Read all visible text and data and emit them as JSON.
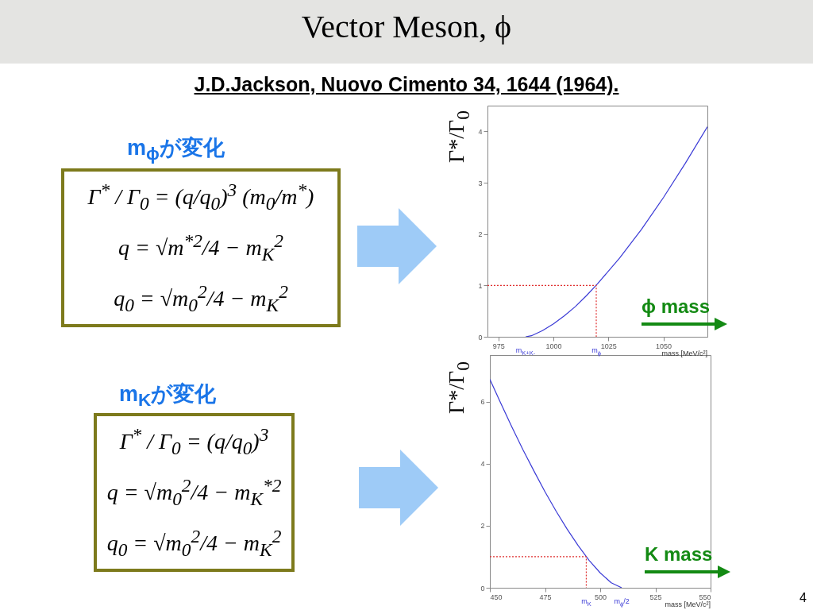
{
  "chart_data": [
    {
      "type": "line",
      "title": "Vector Meson, ϕ",
      "subtitle": "J.D.Jackson, Nuovo Cimento 34, 1644 (1964).",
      "xlabel": "mass [MeV/c²]",
      "ylabel": "Γ*/Γ$_{0}$",
      "xlim": [
        970,
        1070
      ],
      "xticks": [
        975,
        1000,
        1025,
        1050
      ],
      "ylim": [
        0,
        4.5
      ],
      "yticks": [
        0,
        1,
        2,
        3,
        4
      ],
      "series": [
        {
          "color": "#3b3bd6",
          "x": [
            987.35,
            990,
            995,
            1000,
            1005,
            1010,
            1015,
            1020,
            1030,
            1040,
            1050,
            1060,
            1070
          ],
          "values": [
            0,
            0.02,
            0.12,
            0.25,
            0.41,
            0.59,
            0.8,
            1.03,
            1.53,
            2.09,
            2.71,
            3.38,
            4.09
          ]
        },
        {
          "color": "#e03030",
          "line_style": "dotted",
          "x": [
            970,
            1019.46,
            1019.46
          ],
          "values": [
            1,
            1,
            0
          ]
        }
      ],
      "annotations": [
        "m$_{ϕ}$が変化",
        "Γ$^{*}$ / Γ$_{0}$ = (q/q$_{0}$)$^{3}$ (m$_{0}$/m$^{*}$)",
        "q = √m$^{*2}$/4 − m$_{K}$$^{2}$",
        "q$_{0}$ = √m$_{0}$$^{2}$/4 − m$_{K}$$^{2}$",
        "ϕ mass",
        {
          "text": "m$_{K+K-}$",
          "x": 987.35,
          "y": 0
        },
        {
          "text": "m$_{ϕ}$",
          "x": 1019.46,
          "y": 0
        }
      ]
    },
    {
      "type": "line",
      "xlabel": "mass [MeV/c²]",
      "ylabel": "Γ*/Γ$_{0}$",
      "xlim": [
        450,
        550
      ],
      "xticks": [
        450,
        475,
        500,
        525,
        550
      ],
      "ylim": [
        0,
        7.5
      ],
      "yticks": [
        0,
        2,
        4,
        6
      ],
      "series": [
        {
          "color": "#3b3bd6",
          "x": [
            450,
            455,
            460,
            465,
            470,
            475,
            480,
            485,
            490,
            495,
            500,
            505,
            509.73
          ],
          "values": [
            6.72,
            5.94,
            5.18,
            4.45,
            3.76,
            3.09,
            2.47,
            1.89,
            1.36,
            0.88,
            0.48,
            0.16,
            0
          ]
        },
        {
          "color": "#e03030",
          "line_style": "dotted",
          "x": [
            450,
            493.68,
            493.68
          ],
          "values": [
            1,
            1,
            0
          ]
        }
      ],
      "annotations": [
        "m$_{K}$が変化",
        "Γ$^{*}$ / Γ$_{0}$ = (q/q$_{0}$)$^{3}$",
        "q = √m$_{0}$$^{2}$/4 − m$_{K}$$^{*2}$",
        "q$_{0}$ = √m$_{0}$$^{2}$/4 − m$_{K}$$^{2}$",
        "K mass",
        "4",
        {
          "text": "m$_{K}$",
          "x": 493.68,
          "y": 0
        },
        {
          "text": "m$_{ϕ}$/2",
          "x": 509.73,
          "y": 0
        }
      ]
    }
  ]
}
